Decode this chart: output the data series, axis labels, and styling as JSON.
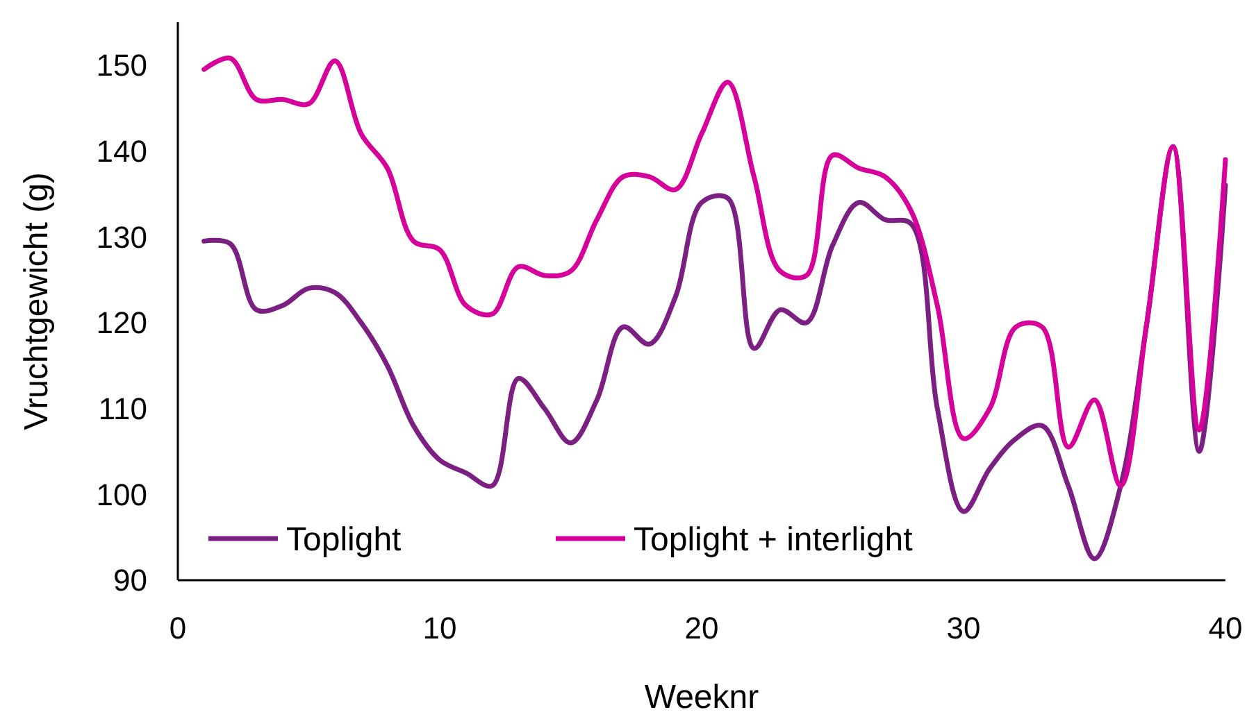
{
  "chart_data": {
    "type": "line",
    "xlabel": "Weeknr",
    "ylabel": "Vruchtgewicht (g)",
    "x": [
      1,
      2,
      3,
      4,
      5,
      6,
      7,
      8,
      9,
      10,
      11,
      12,
      13,
      14,
      15,
      16,
      17,
      18,
      19,
      20,
      21,
      22,
      23,
      24,
      25,
      26,
      27,
      28,
      29,
      30,
      31,
      32,
      33,
      34,
      35,
      36,
      37,
      38,
      39,
      40
    ],
    "series": [
      {
        "name": "Toplight",
        "color": "#7b2082",
        "values": [
          129.5,
          129.2,
          121.5,
          122,
          124,
          123.5,
          120,
          115,
          108,
          104,
          102.5,
          101,
          113.5,
          110,
          106,
          111,
          119.5,
          117.5,
          123,
          134,
          134.5,
          117,
          121.5,
          120,
          129,
          134,
          132,
          131.5,
          110,
          98,
          103,
          106.5,
          108,
          101,
          92.5,
          101,
          120,
          140.5,
          105,
          136
        ]
      },
      {
        "name": "Toplight + interlight",
        "color": "#d6009a",
        "values": [
          149.5,
          150.8,
          146,
          146,
          145.5,
          150.5,
          142,
          138,
          129.5,
          128.5,
          122,
          121,
          126.5,
          125.5,
          126,
          132,
          137,
          137,
          135.5,
          142,
          148,
          137,
          126,
          125.5,
          139.5,
          138,
          137,
          133,
          122,
          106.5,
          110,
          119.5,
          119.5,
          105.5,
          111,
          101,
          120,
          140.5,
          107.5,
          139
        ]
      }
    ],
    "xlim": [
      0,
      40
    ],
    "xticks": [
      0,
      10,
      20,
      30,
      40
    ],
    "ylim": [
      90,
      155
    ],
    "yticks": [
      90,
      100,
      110,
      120,
      130,
      140,
      150
    ],
    "grid": false,
    "legend": "bottom left",
    "marker": "none",
    "line_style": "solid"
  }
}
